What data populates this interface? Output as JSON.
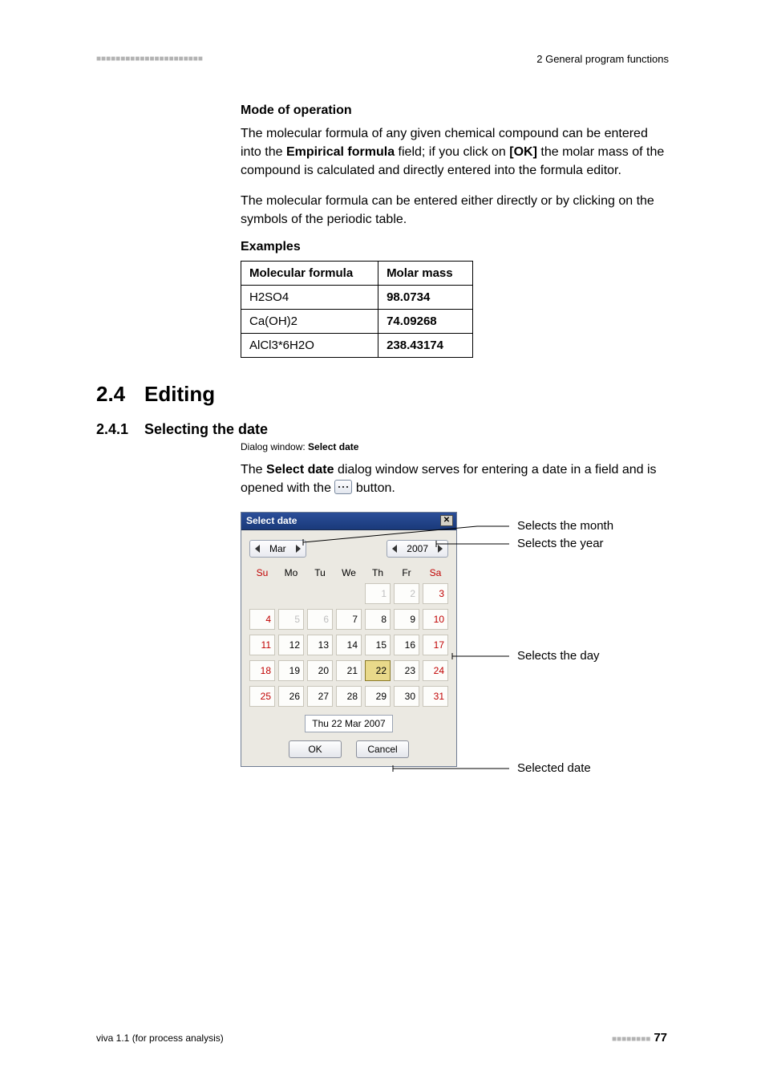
{
  "header": {
    "chapter_ref": "2 General program functions"
  },
  "mode": {
    "heading": "Mode of operation",
    "para1_a": "The molecular formula of any given chemical compound can be entered into the ",
    "para1_bold1": "Empirical formula",
    "para1_b": " field; if you click on ",
    "para1_bold2": "[OK]",
    "para1_c": " the molar mass of the compound is calculated and directly entered into the formula editor.",
    "para2": "The molecular formula can be entered either directly or by clicking on the symbols of the periodic table."
  },
  "examples": {
    "heading": "Examples",
    "col1": "Molecular formula",
    "col2": "Molar mass",
    "rows": [
      {
        "f": "H2SO4",
        "m": "98.0734"
      },
      {
        "f": "Ca(OH)2",
        "m": "74.09268"
      },
      {
        "f": "AlCl3*6H2O",
        "m": "238.43174"
      }
    ]
  },
  "section": {
    "num": "2.4",
    "title": "Editing"
  },
  "subsection": {
    "num": "2.4.1",
    "title": "Selecting the date",
    "dialog_label_a": "Dialog window: ",
    "dialog_label_b": "Select date",
    "para_a": "The ",
    "para_bold": "Select date",
    "para_b": " dialog window serves for entering a date in a field and is opened with the ",
    "para_c": " button."
  },
  "picker": {
    "title": "Select date",
    "month": "Mar",
    "year": "2007",
    "dow": [
      "Su",
      "Mo",
      "Tu",
      "We",
      "Th",
      "Fr",
      "Sa"
    ],
    "weeks": [
      [
        null,
        null,
        null,
        null,
        {
          "d": "1",
          "fade": true
        },
        {
          "d": "2",
          "fade": true
        },
        {
          "d": "3",
          "fade": true,
          "we": true
        }
      ],
      [
        {
          "d": "4",
          "fade": true,
          "we": true
        },
        {
          "d": "5",
          "fade": true
        },
        {
          "d": "6",
          "fade": true
        },
        {
          "d": "7"
        },
        {
          "d": "8"
        },
        {
          "d": "9"
        },
        {
          "d": "10",
          "we": true
        }
      ],
      [
        {
          "d": "11",
          "we": true
        },
        {
          "d": "12"
        },
        {
          "d": "13"
        },
        {
          "d": "14"
        },
        {
          "d": "15"
        },
        {
          "d": "16"
        },
        {
          "d": "17",
          "we": true
        }
      ],
      [
        {
          "d": "18",
          "we": true
        },
        {
          "d": "19"
        },
        {
          "d": "20"
        },
        {
          "d": "21"
        },
        {
          "d": "22",
          "sel": true
        },
        {
          "d": "23"
        },
        {
          "d": "24",
          "we": true
        }
      ],
      [
        {
          "d": "25",
          "we": true
        },
        {
          "d": "26"
        },
        {
          "d": "27"
        },
        {
          "d": "28"
        },
        {
          "d": "29"
        },
        {
          "d": "30"
        },
        {
          "d": "31",
          "we": true
        }
      ]
    ],
    "selected": "Thu  22 Mar 2007",
    "ok": "OK",
    "cancel": "Cancel"
  },
  "annotations": {
    "month": "Selects the month",
    "year": "Selects the year",
    "day": "Selects the day",
    "selected": "Selected date"
  },
  "footer": {
    "product": "viva 1.1 (for process analysis)",
    "page": "77"
  },
  "colors": {
    "weekend": "#c00000",
    "titlebar_from": "#2b4f99",
    "titlebar_to": "#1a3a7a",
    "panel_bg": "#ebe9e2",
    "sel_bg": "#e9d98a",
    "dash": "#b3b3b3"
  }
}
